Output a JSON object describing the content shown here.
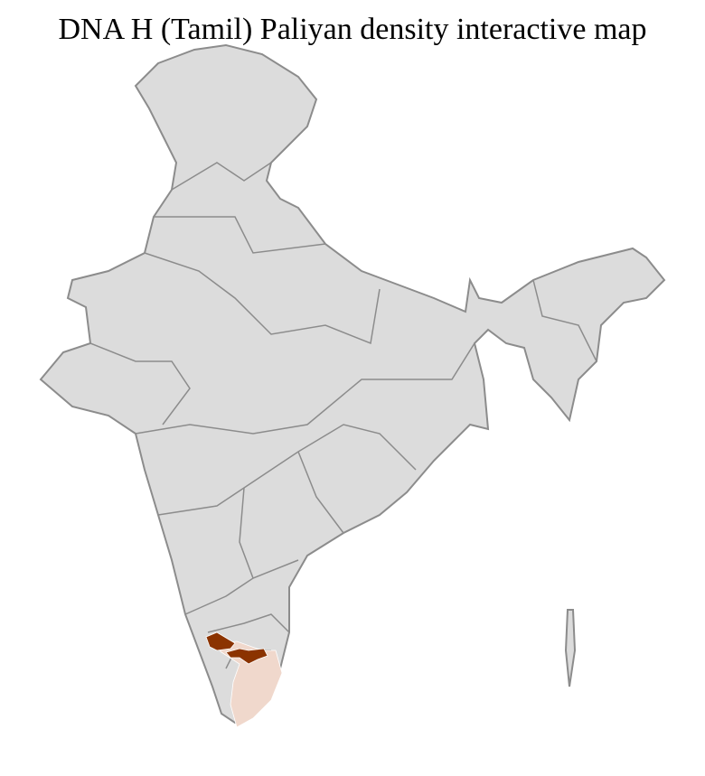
{
  "title": "DNA H (Tamil) Paliyan density interactive map",
  "map": {
    "base_fill": "#dcdcdc",
    "district_border": "#ffffff",
    "state_border": "#8c8c8c",
    "high_density_color": "#8b3300",
    "low_density_color": "#f0d8cc",
    "regions": [
      {
        "level": "high"
      },
      {
        "level": "high"
      },
      {
        "level": "low"
      }
    ]
  }
}
